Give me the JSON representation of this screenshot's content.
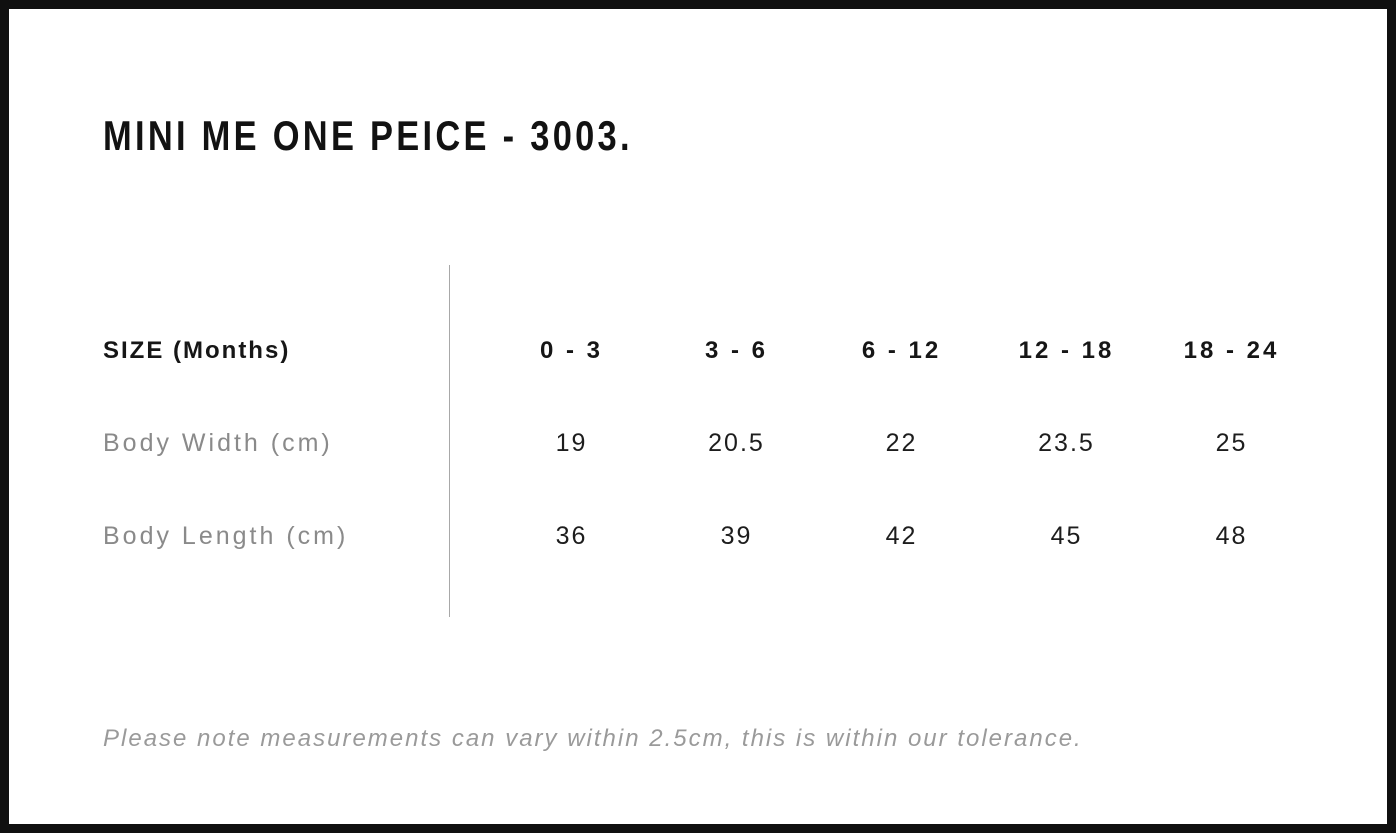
{
  "chart_data": {
    "type": "table",
    "title": "MINI ME ONE PEICE - 3003.",
    "columns": [
      "SIZE (Months)",
      "0 - 3",
      "3 - 6",
      "6 - 12",
      "12 - 18",
      "18 - 24"
    ],
    "rows": [
      [
        "Body Width (cm)",
        19,
        20.5,
        22,
        23.5,
        25
      ],
      [
        "Body Length (cm)",
        36,
        39,
        42,
        45,
        48
      ]
    ],
    "footnote": "Please note measurements can vary within 2.5cm, this is within our tolerance."
  },
  "header": {
    "title": "MINI ME ONE PEICE - 3003."
  },
  "table": {
    "size_label": "SIZE (Months)",
    "columns": [
      "0 - 3",
      "3 - 6",
      "6 - 12",
      "12 - 18",
      "18 - 24"
    ],
    "rows": [
      {
        "label": "Body Width (cm)",
        "values": [
          "19",
          "20.5",
          "22",
          "23.5",
          "25"
        ]
      },
      {
        "label": "Body Length (cm)",
        "values": [
          "36",
          "39",
          "42",
          "45",
          "48"
        ]
      }
    ]
  },
  "footer": {
    "note": "Please note measurements can vary within 2.5cm, this is within our tolerance."
  },
  "colors": {
    "border": "#101010",
    "text_primary": "#161616",
    "text_muted": "#8a8a8a",
    "divider": "#a8a8a8"
  }
}
